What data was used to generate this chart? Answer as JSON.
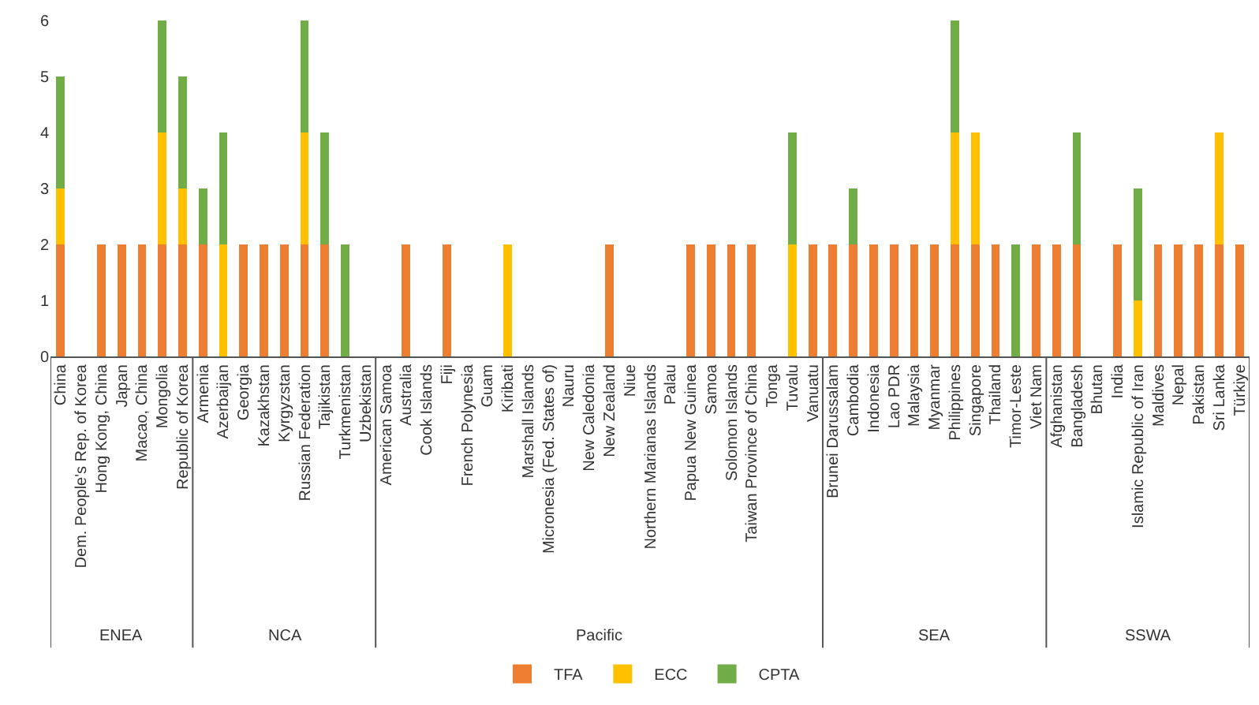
{
  "chart_data": {
    "type": "bar",
    "stacked": true,
    "legend": "bottom",
    "categories": [
      "China",
      "Dem. People's Rep. of Korea",
      "Hong Kong, China",
      "Japan",
      "Macao, China",
      "Mongolia",
      "Republic of Korea",
      "Armenia",
      "Azerbaijan",
      "Georgia",
      "Kazakhstan",
      "Kyrgyzstan",
      "Russian Federation",
      "Tajikistan",
      "Turkmenistan",
      "Uzbekistan",
      "American Samoa",
      "Australia",
      "Cook Islands",
      "Fiji",
      "French Polynesia",
      "Guam",
      "Kiribati",
      "Marshall Islands",
      "Micronesia (Fed. States of)",
      "Nauru",
      "New Caledonia",
      "New Zealand",
      "Niue",
      "Northern Marianas Islands",
      "Palau",
      "Papua New Guinea",
      "Samoa",
      "Solomon Islands",
      "Taiwan Province of China",
      "Tonga",
      "Tuvalu",
      "Vanuatu",
      "Brunei Darussalam",
      "Cambodia",
      "Indonesia",
      "Lao PDR",
      "Malaysia",
      "Myanmar",
      "Philippines",
      "Singapore",
      "Thailand",
      "Timor-Leste",
      "Viet Nam",
      "Afghanistan",
      "Bangladesh",
      "Bhutan",
      "India",
      "Islamic Republic of Iran",
      "Maldives",
      "Nepal",
      "Pakistan",
      "Sri Lanka",
      "Türkiye"
    ],
    "series": [
      {
        "name": "TFA",
        "color": "#ed7d31",
        "values": [
          2,
          0,
          2,
          2,
          2,
          2,
          2,
          2,
          0,
          2,
          2,
          2,
          2,
          2,
          0,
          0,
          0,
          2,
          0,
          2,
          0,
          0,
          0,
          0,
          0,
          0,
          0,
          2,
          0,
          0,
          0,
          2,
          2,
          2,
          2,
          0,
          0,
          2,
          2,
          2,
          2,
          2,
          2,
          2,
          2,
          2,
          2,
          0,
          2,
          2,
          2,
          0,
          2,
          0,
          2,
          2,
          2,
          2,
          2
        ]
      },
      {
        "name": "ECC",
        "color": "#ffc000",
        "values": [
          1,
          0,
          0,
          0,
          0,
          2,
          1,
          0,
          2,
          0,
          0,
          0,
          2,
          0,
          0,
          0,
          0,
          0,
          0,
          0,
          0,
          0,
          2,
          0,
          0,
          0,
          0,
          0,
          0,
          0,
          0,
          0,
          0,
          0,
          0,
          0,
          2,
          0,
          0,
          0,
          0,
          0,
          0,
          0,
          2,
          2,
          0,
          0,
          0,
          0,
          0,
          0,
          0,
          1,
          0,
          0,
          0,
          2,
          0
        ]
      },
      {
        "name": "CPTA",
        "color": "#70ad47",
        "values": [
          2,
          0,
          0,
          0,
          0,
          2,
          2,
          1,
          2,
          0,
          0,
          0,
          2,
          2,
          2,
          0,
          0,
          0,
          0,
          0,
          0,
          0,
          0,
          0,
          0,
          0,
          0,
          0,
          0,
          0,
          0,
          0,
          0,
          0,
          0,
          0,
          2,
          0,
          0,
          1,
          0,
          0,
          0,
          0,
          2,
          0,
          0,
          2,
          0,
          0,
          2,
          0,
          0,
          2,
          0,
          0,
          0,
          0,
          0
        ]
      }
    ],
    "ylim": [
      0,
      6
    ],
    "yticks": [
      0,
      1,
      2,
      3,
      4,
      5,
      6
    ],
    "annotations": [
      "ENEA",
      "NCA",
      "Pacific",
      "SEA",
      "SSWA"
    ]
  }
}
